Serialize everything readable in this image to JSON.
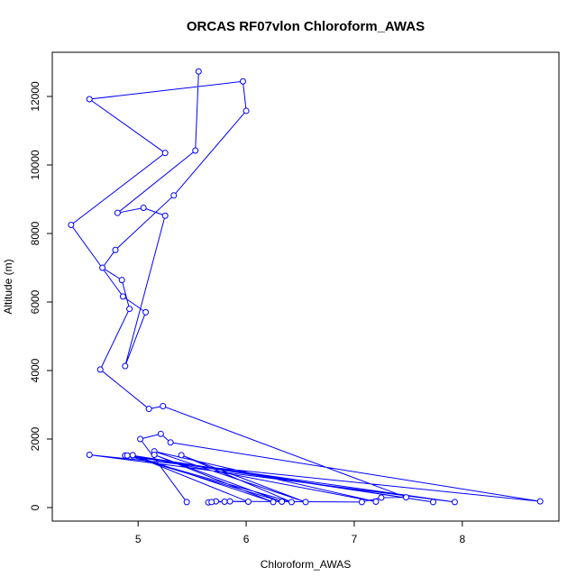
{
  "chart_data": {
    "type": "line",
    "title": "ORCAS RF07vlon Chloroform_AWAS",
    "xlabel": "Chloroform_AWAS",
    "ylabel": "Altitude (m)",
    "color": "#0000ff",
    "x": [
      5.45,
      5.02,
      5.21,
      5.3,
      8.72,
      4.55,
      7.93,
      4.88,
      7.73,
      4.95,
      7.2,
      5.15,
      6.55,
      5.4,
      6.42,
      4.9,
      6.33,
      5.15,
      6.25,
      4.95,
      6.02,
      5.72,
      5.65,
      5.8,
      5.68,
      5.85,
      7.07,
      7.25,
      7.48,
      5.23,
      5.1,
      4.65,
      4.92,
      4.85,
      4.67,
      4.79,
      5.33,
      6.0,
      5.97,
      4.55,
      5.25,
      4.38,
      4.86,
      5.07,
      4.88,
      5.25,
      5.05,
      4.81,
      5.53,
      5.56
    ],
    "values": [
      160,
      2000,
      2150,
      1900,
      180,
      1540,
      160,
      1520,
      160,
      1520,
      170,
      1640,
      160,
      1530,
      160,
      1520,
      170,
      1540,
      160,
      1530,
      170,
      180,
      150,
      170,
      160,
      180,
      160,
      290,
      300,
      2960,
      2880,
      4030,
      5800,
      6640,
      7000,
      7520,
      9110,
      11580,
      12440,
      11920,
      10350,
      8250,
      6160,
      5700,
      4130,
      8520,
      8750,
      8600,
      10420,
      12730
    ],
    "xlim": [
      4.206,
      8.894
    ],
    "ylim": [
      -395,
      13289
    ],
    "xticks": [
      5,
      6,
      7,
      8
    ],
    "yticks": [
      0,
      2000,
      4000,
      6000,
      8000,
      10000,
      12000
    ]
  }
}
